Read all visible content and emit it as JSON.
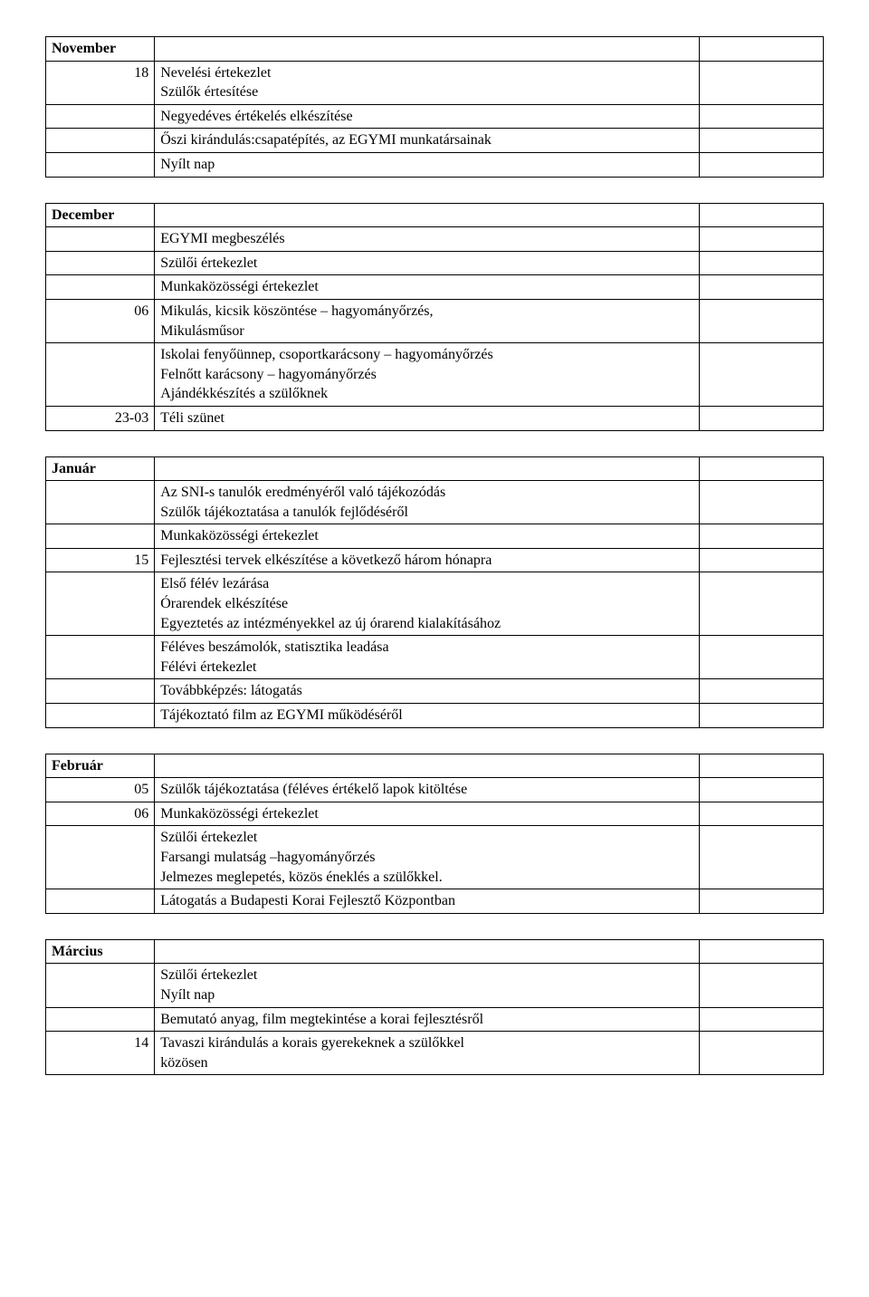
{
  "tables": {
    "november": {
      "header": "November",
      "rows": [
        {
          "c1": "18",
          "c1_align": "right",
          "c2_lines": [
            "Nevelési értekezlet",
            "Szülők értesítése"
          ]
        },
        {
          "c1": "",
          "c2_lines": [
            "Negyedéves értékelés elkészítése"
          ]
        },
        {
          "c1": "",
          "c2_lines": [
            "Őszi kirándulás:csapatépítés, az EGYMI munkatársainak"
          ]
        },
        {
          "c1": "",
          "c2_lines": [
            "Nyílt nap"
          ]
        }
      ]
    },
    "december": {
      "header": "December",
      "rows": [
        {
          "c1": "",
          "c2_lines": [
            "EGYMI megbeszélés"
          ]
        },
        {
          "c1": "",
          "c2_lines": [
            "Szülői értekezlet"
          ]
        },
        {
          "c1": "",
          "c2_lines": [
            "Munkaközösségi értekezlet"
          ]
        },
        {
          "c1": "06",
          "c1_align": "right",
          "c2_lines": [
            "Mikulás, kicsik köszöntése – hagyományőrzés,",
            "Mikulásműsor"
          ]
        },
        {
          "c1": "",
          "c2_lines": [
            "Iskolai fenyőünnep, csoportkarácsony – hagyományőrzés",
            "Felnőtt karácsony – hagyományőrzés",
            "Ajándékkészítés a szülőknek"
          ]
        },
        {
          "c1": "23-03",
          "c1_align": "right",
          "c2_lines": [
            "Téli szünet"
          ]
        }
      ]
    },
    "januar": {
      "header": "Január",
      "rows": [
        {
          "c1": "",
          "c2_lines": [
            "Az SNI-s tanulók eredményéről való tájékozódás",
            "Szülők tájékoztatása a tanulók fejlődéséről"
          ]
        },
        {
          "c1": "",
          "c2_lines": [
            "Munkaközösségi értekezlet"
          ]
        },
        {
          "c1": "15",
          "c1_align": "right",
          "c2_lines": [
            "Fejlesztési tervek elkészítése a következő három hónapra"
          ]
        },
        {
          "c1": "",
          "c2_lines": [
            "Első félév lezárása",
            "Órarendek elkészítése",
            "Egyeztetés az intézményekkel az új órarend kialakításához"
          ]
        },
        {
          "c1": "",
          "c2_lines": [
            "Féléves beszámolók, statisztika leadása",
            "Félévi értekezlet"
          ]
        },
        {
          "c1": "",
          "c2_lines": [
            "Továbbképzés: látogatás"
          ]
        },
        {
          "c1": "",
          "c2_lines": [
            "Tájékoztató film az EGYMI működéséről"
          ]
        }
      ]
    },
    "februar": {
      "header": "Február",
      "rows": [
        {
          "c1": "05",
          "c1_align": "right",
          "c2_lines": [
            "Szülők tájékoztatása (féléves értékelő lapok kitöltése"
          ]
        },
        {
          "c1": "06",
          "c1_align": "right",
          "c2_lines": [
            "Munkaközösségi értekezlet"
          ]
        },
        {
          "c1": "",
          "c2_lines": [
            "Szülői értekezlet",
            "Farsangi mulatság –hagyományőrzés",
            "Jelmezes meglepetés, közös éneklés a szülőkkel."
          ]
        },
        {
          "c1": "",
          "c2_lines": [
            "Látogatás a Budapesti Korai Fejlesztő Központban"
          ]
        }
      ]
    },
    "marcius": {
      "header": "Március",
      "rows": [
        {
          "c1": "",
          "c2_lines": [
            "Szülői értekezlet",
            "Nyílt nap"
          ]
        },
        {
          "c1": "",
          "c2_lines": [
            "Bemutató anyag, film megtekintése a korai fejlesztésről"
          ]
        },
        {
          "c1": "14",
          "c1_align": "right",
          "c2_lines": [
            "Tavaszi kirándulás a korais gyerekeknek a szülőkkel",
            "közösen"
          ]
        }
      ]
    }
  },
  "order": [
    "november",
    "december",
    "januar",
    "februar",
    "marcius"
  ]
}
